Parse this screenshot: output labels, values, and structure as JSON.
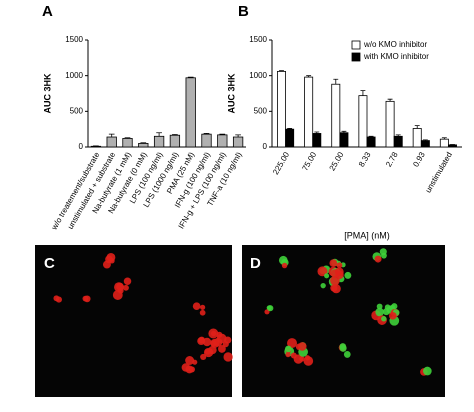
{
  "chart_data": [
    {
      "type": "bar",
      "panel": "A",
      "ylabel": "AUC 3HK",
      "categories": [
        "w/o treatement/substrate",
        "unstimulated + substrate",
        "Na-butyrate (1 mM)",
        "Na-butyrate (0 mM)",
        "LPS (100 ng/ml)",
        "LPS (1000 ng/ml)",
        "PMA (25 nM)",
        "IFN-g (100 ng/ml)",
        "IFN-g + LPS (100 ng/ml)",
        "TNF-a (10 ng/ml)"
      ],
      "values": [
        10,
        140,
        120,
        50,
        150,
        165,
        970,
        180,
        170,
        140
      ],
      "errors": [
        5,
        40,
        10,
        10,
        50,
        10,
        10,
        10,
        10,
        30
      ],
      "color": "#b0b0b0",
      "ylim": [
        0,
        1500
      ],
      "yticks": [
        0,
        500,
        1000,
        1500
      ]
    },
    {
      "type": "bar",
      "panel": "B",
      "ylabel": "AUC 3HK",
      "xlabel": "[PMA] (nM)",
      "categories": [
        "225.00",
        "75.00",
        "25.00",
        "8.33",
        "2.78",
        "0.93",
        "unstimulated"
      ],
      "series": [
        {
          "name": "w/o KMO inhibitor",
          "color": "#ffffff",
          "values": [
            1060,
            980,
            880,
            720,
            640,
            260,
            110
          ],
          "errors": [
            10,
            20,
            70,
            70,
            30,
            40,
            20
          ]
        },
        {
          "name": "with KMO inhibitor",
          "color": "#000000",
          "values": [
            250,
            190,
            200,
            140,
            150,
            90,
            30
          ],
          "errors": [
            10,
            20,
            20,
            10,
            20,
            10,
            5
          ]
        }
      ],
      "legend": "top-right",
      "ylim": [
        0,
        1500
      ],
      "yticks": [
        0,
        500,
        1000,
        1500
      ]
    }
  ],
  "images": [
    {
      "label": "C"
    },
    {
      "label": "D"
    }
  ]
}
